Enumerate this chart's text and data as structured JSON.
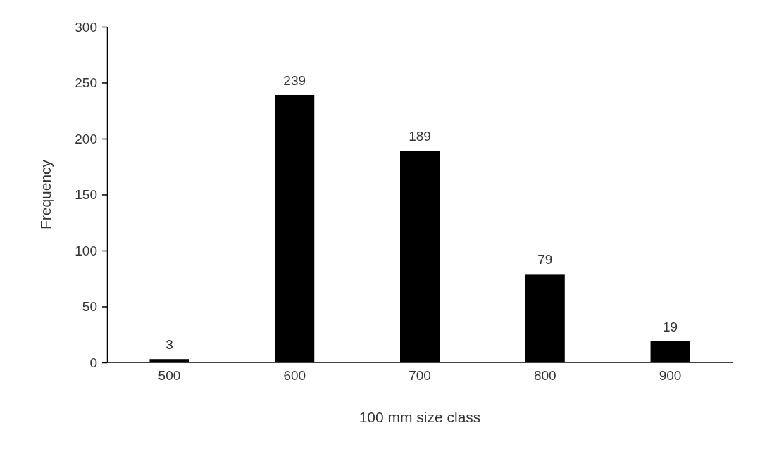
{
  "chart_data": {
    "type": "bar",
    "xlabel": "100 mm size class",
    "ylabel": "Frequency",
    "categories": [
      "500",
      "600",
      "700",
      "800",
      "900"
    ],
    "values": [
      3,
      239,
      189,
      79,
      19
    ],
    "color": "#000000",
    "ylim": [
      0,
      300
    ],
    "yticks": [
      0,
      50,
      100,
      150,
      200,
      250,
      300
    ],
    "grid": false,
    "data_labels": true
  }
}
